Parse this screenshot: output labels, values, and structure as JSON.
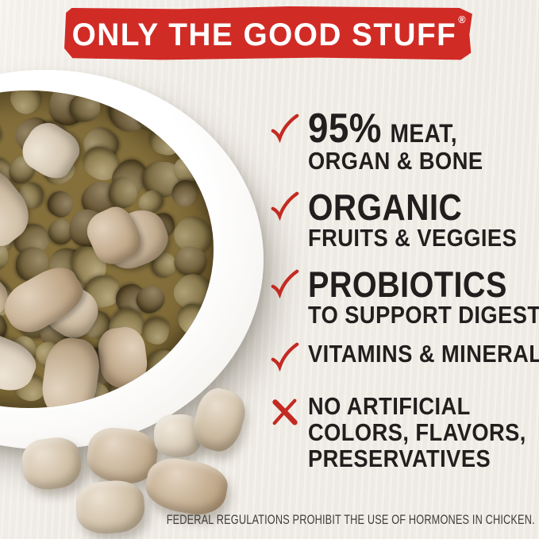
{
  "banner": {
    "title": "ONLY THE GOOD STUFF",
    "registered": "®"
  },
  "colors": {
    "banner_red": "#d12b26",
    "mark_red": "#c32a22",
    "text_dark": "#221e1e",
    "background": "#f1ede7",
    "bowl_white": "#fbfaf7",
    "disclaimer_gray": "#3f3c3a"
  },
  "checklist": {
    "items": [
      {
        "icon": "check-icon",
        "headline": "95%",
        "headline_suffix": "MEAT,",
        "lines": [
          "ORGAN & BONE"
        ]
      },
      {
        "icon": "check-icon",
        "headline": "ORGANIC",
        "lines": [
          "FRUITS & VEGGIES"
        ]
      },
      {
        "icon": "check-icon",
        "headline": "PROBIOTICS",
        "lines": [
          "TO SUPPORT DIGESTION"
        ]
      },
      {
        "icon": "check-icon",
        "lines": [
          "VITAMINS & MINERALS"
        ]
      },
      {
        "icon": "x-icon",
        "lines": [
          "NO ARTIFICIAL",
          "COLORS, FLAVORS,",
          "PRESERVATIVES"
        ]
      }
    ]
  },
  "disclaimer": "FEDERAL REGULATIONS PROHIBIT THE USE OF HORMONES IN CHICKEN.",
  "photo": {
    "subject": "White ceramic bowl filled with brown kibble and freeze-dried raw chunks; extra chunks scattered beside the bowl",
    "kibble_colors": [
      "#8d7840",
      "#75602f",
      "#9a8449",
      "#6b5529",
      "#84703b",
      "#917b42"
    ],
    "chunk_colors": [
      "#d8c3a3",
      "#cbb08c",
      "#e1d0b5",
      "#d3bd9c",
      "#c9ab85"
    ]
  }
}
